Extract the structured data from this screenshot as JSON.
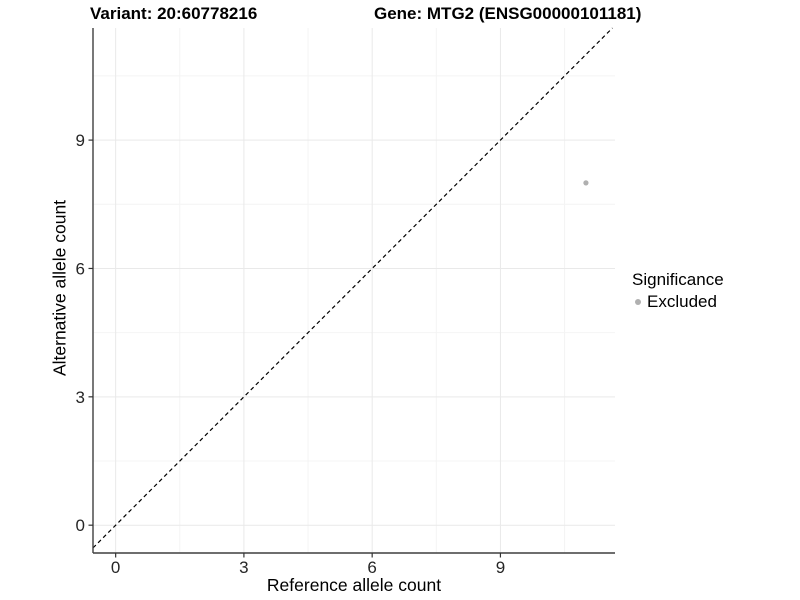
{
  "header": {
    "title_left": "Variant: 20:60778216",
    "title_right": "Gene: MTG2 (ENSG00000101181)"
  },
  "chart_data": {
    "type": "scatter",
    "xlabel": "Reference allele count",
    "ylabel": "Alternative allele count",
    "xlim": [
      -0.53,
      11.68
    ],
    "ylim": [
      -0.65,
      11.62
    ],
    "x_ticks": [
      0,
      3,
      6,
      9
    ],
    "y_ticks": [
      0,
      3,
      6,
      9
    ],
    "x_minor_ticks": [
      1.5,
      4.5,
      7.5,
      10.5
    ],
    "y_minor_ticks": [
      1.5,
      4.5,
      7.5,
      10.5
    ],
    "grid": true,
    "identity_line": {
      "slope": 1,
      "intercept": 0,
      "style": "dashed",
      "color": "#000000"
    },
    "series": [
      {
        "name": "Excluded",
        "color": "#b0b0b0",
        "points": [
          {
            "x": 11,
            "y": 8
          }
        ]
      }
    ],
    "legend": {
      "title": "Significance",
      "position": "right",
      "items": [
        {
          "label": "Excluded",
          "color": "#b0b0b0"
        }
      ]
    },
    "colors": {
      "grid_major": "#e9e9e9",
      "grid_minor": "#f4f4f4",
      "axis_line": "#3f3f3f",
      "tick_mark": "#333333",
      "tick_text": "#262626",
      "panel_bg": "#ffffff"
    }
  }
}
